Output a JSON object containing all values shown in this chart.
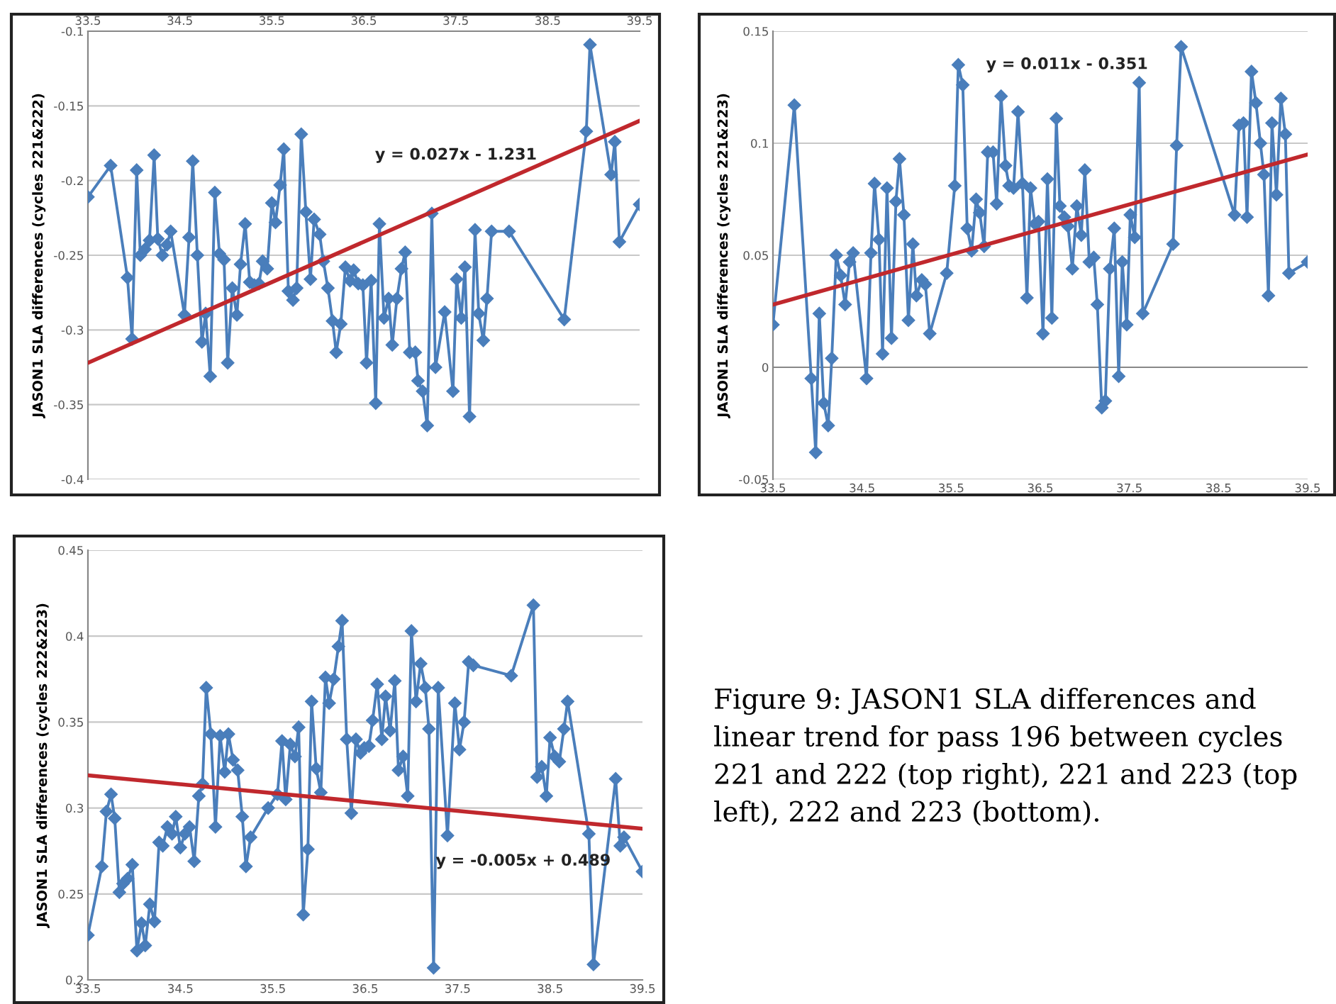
{
  "chart_data": [
    {
      "type": "line",
      "ylabel": "JASON1 SLA differences (cycles 221&222)",
      "xlim": [
        33.5,
        39.5
      ],
      "xticks": [
        33.5,
        34.5,
        35.5,
        36.5,
        37.5,
        38.5,
        39.5
      ],
      "ylim": [
        -0.4,
        -0.1
      ],
      "yticks": [
        -0.4,
        -0.35,
        -0.3,
        -0.25,
        -0.2,
        -0.15,
        -0.1
      ],
      "grid": "y",
      "marker": "diamond",
      "line_style": "solid",
      "series": [
        {
          "color": "#4a7ebb",
          "x": [
            33.5,
            33.747,
            33.93,
            33.98,
            34.03,
            34.07,
            34.12,
            34.17,
            34.22,
            34.26,
            34.31,
            34.36,
            34.4,
            34.55,
            34.6,
            34.64,
            34.69,
            34.74,
            34.78,
            34.83,
            34.88,
            34.93,
            34.98,
            35.02,
            35.07,
            35.12,
            35.16,
            35.21,
            35.26,
            35.31,
            35.36,
            35.4,
            35.45,
            35.5,
            35.54,
            35.59,
            35.63,
            35.68,
            35.73,
            35.77,
            35.82,
            35.87,
            35.92,
            35.96,
            36.02,
            36.06,
            36.11,
            36.16,
            36.2,
            36.25,
            36.3,
            36.35,
            36.39,
            36.44,
            36.49,
            36.53,
            36.58,
            36.63,
            36.67,
            36.72,
            36.77,
            36.81,
            36.86,
            36.91,
            36.95,
            37.0,
            37.06,
            37.09,
            37.14,
            37.19,
            37.24,
            37.28,
            37.38,
            37.47,
            37.51,
            37.56,
            37.6,
            37.65,
            37.71,
            37.75,
            37.8,
            37.84,
            37.89,
            38.08,
            38.68,
            38.92,
            38.96,
            39.19,
            39.23,
            39.28,
            39.5
          ],
          "values": [
            -0.211,
            -0.19,
            -0.265,
            -0.306,
            -0.193,
            -0.25,
            -0.246,
            -0.24,
            -0.183,
            -0.239,
            -0.25,
            -0.243,
            -0.234,
            -0.29,
            -0.238,
            -0.187,
            -0.25,
            -0.308,
            -0.289,
            -0.331,
            -0.208,
            -0.249,
            -0.253,
            -0.322,
            -0.272,
            -0.29,
            -0.256,
            -0.229,
            -0.268,
            -0.27,
            -0.269,
            -0.254,
            -0.259,
            -0.215,
            -0.228,
            -0.203,
            -0.179,
            -0.274,
            -0.28,
            -0.272,
            -0.169,
            -0.221,
            -0.266,
            -0.226,
            -0.236,
            -0.254,
            -0.272,
            -0.294,
            -0.315,
            -0.296,
            -0.258,
            -0.267,
            -0.26,
            -0.269,
            -0.27,
            -0.322,
            -0.267,
            -0.349,
            -0.229,
            -0.292,
            -0.279,
            -0.31,
            -0.279,
            -0.259,
            -0.248,
            -0.315,
            -0.315,
            -0.334,
            -0.341,
            -0.364,
            -0.222,
            -0.325,
            -0.288,
            -0.341,
            -0.266,
            -0.292,
            -0.258,
            -0.358,
            -0.233,
            -0.289,
            -0.307,
            -0.279,
            -0.234,
            -0.234,
            -0.293,
            -0.167,
            -0.109,
            -0.196,
            -0.174,
            -0.241,
            -0.216
          ]
        },
        {
          "type": "line",
          "color": "#c0282d",
          "marker": "none",
          "x": [
            33.5,
            39.5
          ],
          "values": [
            -0.322,
            -0.16
          ]
        }
      ],
      "annotations": [
        "y = 0.027x - 1.231"
      ]
    },
    {
      "type": "line",
      "ylabel": "JASON1 SLA differences (cycles 221&223)",
      "xlim": [
        33.5,
        39.5
      ],
      "xticks": [
        33.5,
        34.5,
        35.5,
        36.5,
        37.5,
        38.5,
        39.5
      ],
      "ylim": [
        -0.05,
        0.15
      ],
      "yticks": [
        -0.05,
        0,
        0.05,
        0.1,
        0.15
      ],
      "grid": "y",
      "marker": "diamond",
      "line_style": "solid",
      "series": [
        {
          "color": "#4a7ebb",
          "x": [
            33.5,
            33.74,
            33.93,
            33.98,
            34.02,
            34.07,
            34.12,
            34.16,
            34.21,
            34.26,
            34.31,
            34.36,
            34.4,
            34.55,
            34.6,
            34.64,
            34.69,
            34.73,
            34.78,
            34.83,
            34.88,
            34.92,
            34.97,
            35.02,
            35.07,
            35.11,
            35.17,
            35.21,
            35.26,
            35.45,
            35.54,
            35.58,
            35.63,
            35.68,
            35.73,
            35.78,
            35.82,
            35.87,
            35.91,
            35.97,
            36.01,
            36.06,
            36.11,
            36.15,
            36.2,
            36.25,
            36.3,
            36.35,
            36.39,
            36.44,
            36.48,
            36.53,
            36.58,
            36.63,
            36.68,
            36.72,
            36.77,
            36.81,
            36.86,
            36.91,
            36.96,
            37.0,
            37.05,
            37.1,
            37.14,
            37.19,
            37.23,
            37.28,
            37.33,
            37.38,
            37.42,
            37.47,
            37.51,
            37.56,
            37.61,
            37.65,
            37.99,
            38.03,
            38.08,
            38.68,
            38.73,
            38.78,
            38.82,
            38.87,
            38.92,
            38.97,
            39.01,
            39.06,
            39.1,
            39.15,
            39.2,
            39.25,
            39.29,
            39.5
          ],
          "values": [
            0.019,
            0.117,
            -0.005,
            -0.038,
            0.024,
            -0.016,
            -0.026,
            0.004,
            0.05,
            0.041,
            0.028,
            0.047,
            0.051,
            -0.005,
            0.051,
            0.082,
            0.057,
            0.006,
            0.08,
            0.013,
            0.074,
            0.093,
            0.068,
            0.021,
            0.055,
            0.032,
            0.039,
            0.037,
            0.015,
            0.042,
            0.081,
            0.135,
            0.126,
            0.062,
            0.052,
            0.075,
            0.069,
            0.054,
            0.096,
            0.096,
            0.073,
            0.121,
            0.09,
            0.081,
            0.08,
            0.114,
            0.082,
            0.031,
            0.08,
            0.064,
            0.065,
            0.015,
            0.084,
            0.022,
            0.111,
            0.072,
            0.067,
            0.063,
            0.044,
            0.072,
            0.059,
            0.088,
            0.047,
            0.049,
            0.028,
            -0.018,
            -0.015,
            0.044,
            0.062,
            -0.004,
            0.047,
            0.019,
            0.068,
            0.058,
            0.127,
            0.024,
            0.055,
            0.099,
            0.143,
            0.068,
            0.108,
            0.109,
            0.067,
            0.132,
            0.118,
            0.1,
            0.086,
            0.032,
            0.109,
            0.077,
            0.12,
            0.104,
            0.042,
            0.047
          ]
        },
        {
          "type": "line",
          "color": "#c0282d",
          "marker": "none",
          "x": [
            33.5,
            39.5
          ],
          "values": [
            0.028,
            0.095
          ]
        }
      ],
      "annotations": [
        "y = 0.011x - 0.351"
      ]
    },
    {
      "type": "line",
      "ylabel": "JASON1 SLA differences (cycles 222&223)",
      "xlim": [
        33.5,
        39.5
      ],
      "xticks": [
        33.5,
        34.5,
        35.5,
        36.5,
        37.5,
        38.5,
        39.5
      ],
      "ylim": [
        0.2,
        0.45
      ],
      "yticks": [
        0.2,
        0.25,
        0.3,
        0.35,
        0.4,
        0.45
      ],
      "grid": "y",
      "marker": "diamond",
      "line_style": "solid",
      "series": [
        {
          "color": "#4a7ebb",
          "x": [
            33.5,
            33.65,
            33.7,
            33.75,
            33.79,
            33.84,
            33.88,
            33.93,
            33.98,
            34.03,
            34.08,
            34.12,
            34.17,
            34.22,
            34.27,
            34.31,
            34.36,
            34.41,
            34.45,
            34.5,
            34.55,
            34.6,
            34.65,
            34.7,
            34.74,
            34.78,
            34.83,
            34.88,
            34.93,
            34.98,
            35.02,
            35.07,
            35.12,
            35.17,
            35.21,
            35.26,
            35.45,
            35.55,
            35.6,
            35.64,
            35.69,
            35.74,
            35.78,
            35.83,
            35.88,
            35.92,
            35.97,
            36.02,
            36.07,
            36.11,
            36.16,
            36.21,
            36.25,
            36.3,
            36.35,
            36.4,
            36.45,
            36.49,
            36.54,
            36.58,
            36.63,
            36.68,
            36.72,
            36.77,
            36.82,
            36.86,
            36.91,
            36.96,
            37.0,
            37.05,
            37.1,
            37.15,
            37.19,
            37.24,
            37.29,
            37.39,
            37.47,
            37.52,
            37.57,
            37.62,
            37.67,
            38.08,
            38.32,
            38.36,
            38.41,
            38.46,
            38.5,
            38.55,
            38.6,
            38.65,
            38.69,
            38.92,
            38.97,
            39.21,
            39.26,
            39.3,
            39.5
          ],
          "values": [
            0.226,
            0.266,
            0.298,
            0.308,
            0.294,
            0.251,
            0.256,
            0.259,
            0.267,
            0.217,
            0.233,
            0.22,
            0.244,
            0.234,
            0.28,
            0.278,
            0.289,
            0.285,
            0.295,
            0.277,
            0.285,
            0.289,
            0.269,
            0.307,
            0.314,
            0.37,
            0.343,
            0.289,
            0.342,
            0.321,
            0.343,
            0.328,
            0.322,
            0.295,
            0.266,
            0.283,
            0.3,
            0.308,
            0.339,
            0.305,
            0.337,
            0.33,
            0.347,
            0.238,
            0.276,
            0.362,
            0.323,
            0.309,
            0.376,
            0.361,
            0.375,
            0.394,
            0.409,
            0.34,
            0.297,
            0.34,
            0.332,
            0.335,
            0.336,
            0.351,
            0.372,
            0.34,
            0.365,
            0.345,
            0.374,
            0.322,
            0.33,
            0.307,
            0.403,
            0.362,
            0.384,
            0.37,
            0.346,
            0.207,
            0.37,
            0.284,
            0.361,
            0.334,
            0.35,
            0.385,
            0.383,
            0.377,
            0.418,
            0.318,
            0.324,
            0.307,
            0.341,
            0.33,
            0.327,
            0.346,
            0.362,
            0.285,
            0.209,
            0.317,
            0.278,
            0.283,
            0.263
          ]
        },
        {
          "type": "line",
          "color": "#c0282d",
          "marker": "none",
          "x": [
            33.5,
            39.5
          ],
          "values": [
            0.319,
            0.288
          ]
        }
      ],
      "annotations": [
        "y = -0.005x + 0.489",
        "Figure 9: JASON1 SLA differences and linear trend for pass 196 between cycles 221 and 222 (top right), 221 and 223 (top left), 222 and 223 (bottom)."
      ]
    }
  ]
}
